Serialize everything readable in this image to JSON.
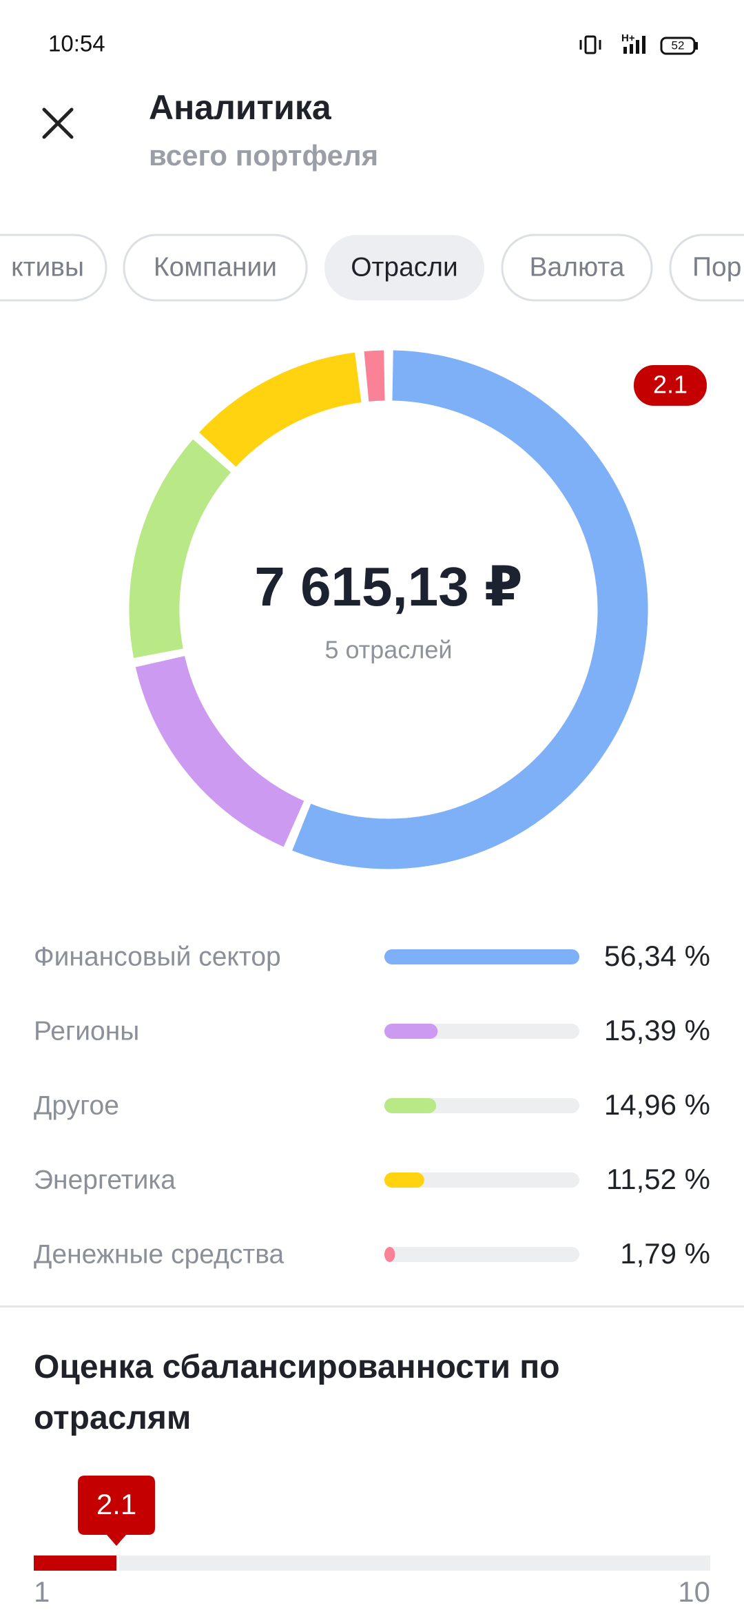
{
  "status_bar": {
    "time": "10:54",
    "network": "H+",
    "battery": "52"
  },
  "header": {
    "title": "Аналитика",
    "subtitle": "всего портфеля"
  },
  "tabs": [
    {
      "label": "ктивы",
      "selected": false
    },
    {
      "label": "Компании",
      "selected": false
    },
    {
      "label": "Отрасли",
      "selected": true
    },
    {
      "label": "Валюта",
      "selected": false
    },
    {
      "label": "Пор",
      "selected": false
    }
  ],
  "chart": {
    "type": "donut",
    "total": "7 615,13 ₽",
    "subtitle": "5 отраслей",
    "categories": [
      "Финансовый сектор",
      "Регионы",
      "Другое",
      "Энергетика",
      "Денежные средства"
    ],
    "values": [
      56.34,
      15.39,
      14.96,
      11.52,
      1.79
    ],
    "value_labels": [
      "56,34 %",
      "15,39 %",
      "14,96 %",
      "11,52 %",
      "1,79 %"
    ],
    "colors": [
      "#7eb0f8",
      "#cc9af0",
      "#b9e986",
      "#ffd30f",
      "#f98296"
    ]
  },
  "score": {
    "title": "Оценка сбалансированности по отраслям",
    "value": 2.1,
    "min": {
      "value": 1,
      "label": "1"
    },
    "max": {
      "value": 10,
      "label": "10"
    }
  }
}
